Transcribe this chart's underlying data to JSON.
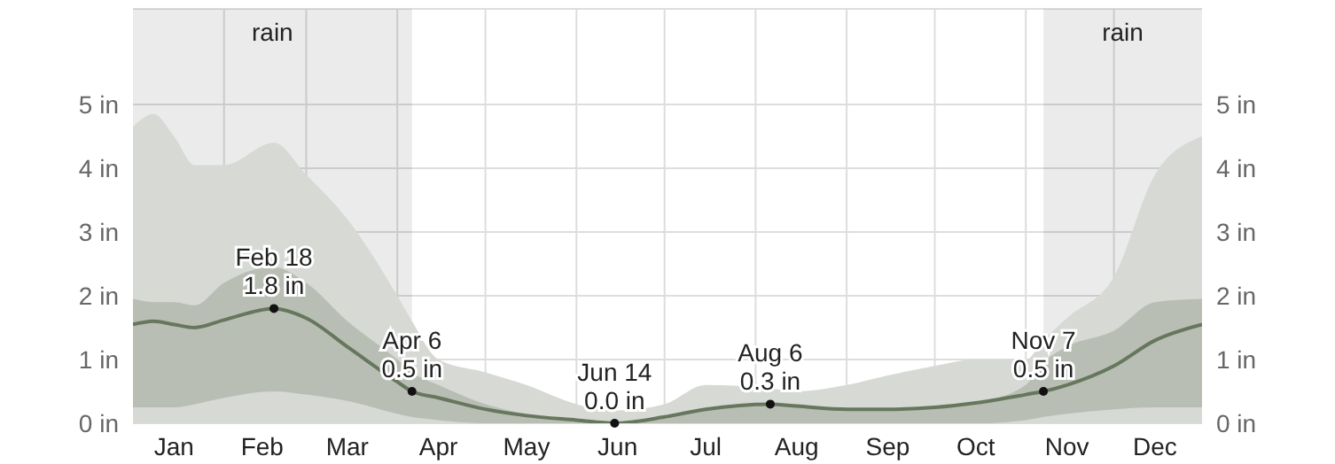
{
  "chart_data": {
    "type": "line",
    "x": [
      "--01-01",
      "--01-08",
      "--01-15",
      "--01-22",
      "--02-01",
      "--02-18",
      "--03-01",
      "--03-15",
      "--04-01",
      "--04-06",
      "--04-15",
      "--05-01",
      "--05-15",
      "--06-01",
      "--06-14",
      "--07-01",
      "--07-15",
      "--08-06",
      "--08-15",
      "--09-01",
      "--09-15",
      "--10-01",
      "--10-15",
      "--11-01",
      "--11-07",
      "--11-15",
      "--12-01",
      "--12-15",
      "--12-31"
    ],
    "series": [
      {
        "type": "area",
        "color": "#d6d9d4",
        "values": [
          4.65,
          4.85,
          4.5,
          4.05,
          4.05,
          4.4,
          3.9,
          3.2,
          2.0,
          1.6,
          1.0,
          0.8,
          0.6,
          0.3,
          0.2,
          0.3,
          0.6,
          0.55,
          0.5,
          0.6,
          0.75,
          0.9,
          1.0,
          1.0,
          1.3,
          1.65,
          2.3,
          3.9,
          4.5
        ]
      },
      {
        "type": "line",
        "color": "#66775e",
        "values": [
          1.55,
          1.6,
          1.55,
          1.5,
          1.62,
          1.8,
          1.65,
          1.2,
          0.65,
          0.5,
          0.4,
          0.22,
          0.12,
          0.05,
          0.0,
          0.1,
          0.22,
          0.3,
          0.27,
          0.22,
          0.22,
          0.25,
          0.32,
          0.45,
          0.5,
          0.6,
          0.9,
          1.3,
          1.55
        ],
        "lower": [
          0.25,
          0.25,
          0.25,
          0.3,
          0.4,
          0.5,
          0.45,
          0.35,
          0.15,
          0.1,
          0.05,
          0,
          0,
          0,
          0,
          0,
          0,
          0,
          0,
          0,
          0,
          0,
          0,
          0.05,
          0.1,
          0.15,
          0.22,
          0.25,
          0.25
        ],
        "upper": [
          1.95,
          1.9,
          1.9,
          1.85,
          2.2,
          2.45,
          2.2,
          1.6,
          1.0,
          0.8,
          0.6,
          0.3,
          0.15,
          0.07,
          0.02,
          0.1,
          0.22,
          0.3,
          0.27,
          0.22,
          0.22,
          0.25,
          0.32,
          0.6,
          0.95,
          1.2,
          1.45,
          1.9,
          1.95
        ]
      }
    ],
    "xlim": [
      "--01-01",
      "--12-31"
    ],
    "xticks": [
      {
        "value": "--01-15",
        "label": "Jan"
      },
      {
        "value": "--02-01",
        "label": null
      },
      {
        "value": "--02-14",
        "label": "Feb"
      },
      {
        "value": "--03-01",
        "label": null
      },
      {
        "value": "--03-15",
        "label": "Mar"
      },
      {
        "value": "--04-01",
        "label": null
      },
      {
        "value": "--04-15",
        "label": "Apr"
      },
      {
        "value": "--05-01",
        "label": null
      },
      {
        "value": "--05-15",
        "label": "May"
      },
      {
        "value": "--06-01",
        "label": null
      },
      {
        "value": "--06-15",
        "label": "Jun"
      },
      {
        "value": "--07-01",
        "label": null
      },
      {
        "value": "--07-15",
        "label": "Jul"
      },
      {
        "value": "--08-01",
        "label": null
      },
      {
        "value": "--08-15",
        "label": "Aug"
      },
      {
        "value": "--09-01",
        "label": null
      },
      {
        "value": "--09-15",
        "label": "Sep"
      },
      {
        "value": "--10-01",
        "label": null
      },
      {
        "value": "--10-15",
        "label": "Oct"
      },
      {
        "value": "--11-01",
        "label": null
      },
      {
        "value": "--11-15",
        "label": "Nov"
      },
      {
        "value": "--12-01",
        "label": null
      },
      {
        "value": "--12-15",
        "label": "Dec"
      }
    ],
    "ylim": [
      0,
      6.5
    ],
    "yticks": [
      {
        "value": 0,
        "label": "0 in"
      },
      {
        "value": 1,
        "label": "1 in"
      },
      {
        "value": 2,
        "label": "2 in"
      },
      {
        "value": 3,
        "label": "3 in"
      },
      {
        "value": 4,
        "label": "4 in"
      },
      {
        "value": 5,
        "label": "5 in"
      }
    ],
    "y2lim": [
      0,
      6.5
    ],
    "y2ticks": [
      {
        "value": 0,
        "label": "0 in"
      },
      {
        "value": 1,
        "label": "1 in"
      },
      {
        "value": 2,
        "label": "2 in"
      },
      {
        "value": 3,
        "label": "3 in"
      },
      {
        "value": 4,
        "label": "4 in"
      },
      {
        "value": 5,
        "label": "5 in"
      }
    ],
    "bands": [
      {
        "axis": "x",
        "from": "--01-01",
        "to": "--04-06",
        "label": "rain",
        "color": "#ebecea"
      },
      {
        "axis": "x",
        "from": "--11-07",
        "to": "--12-31",
        "label": "rain",
        "color": "#ebecea"
      }
    ],
    "annotations": [
      {
        "text": "Feb 18\n1.8 in",
        "x": "--02-18",
        "y": 1.8
      },
      {
        "text": "Apr 6\n0.5 in",
        "x": "--04-06",
        "y": 0.5
      },
      {
        "text": "Jun 14\n0.0 in",
        "x": "--06-14",
        "y": 0.0
      },
      {
        "text": "Aug 6\n0.3 in",
        "x": "--08-06",
        "y": 0.3
      },
      {
        "text": "Nov 7\n0.5 in",
        "x": "--11-07",
        "y": 0.5
      }
    ],
    "grid": true
  }
}
